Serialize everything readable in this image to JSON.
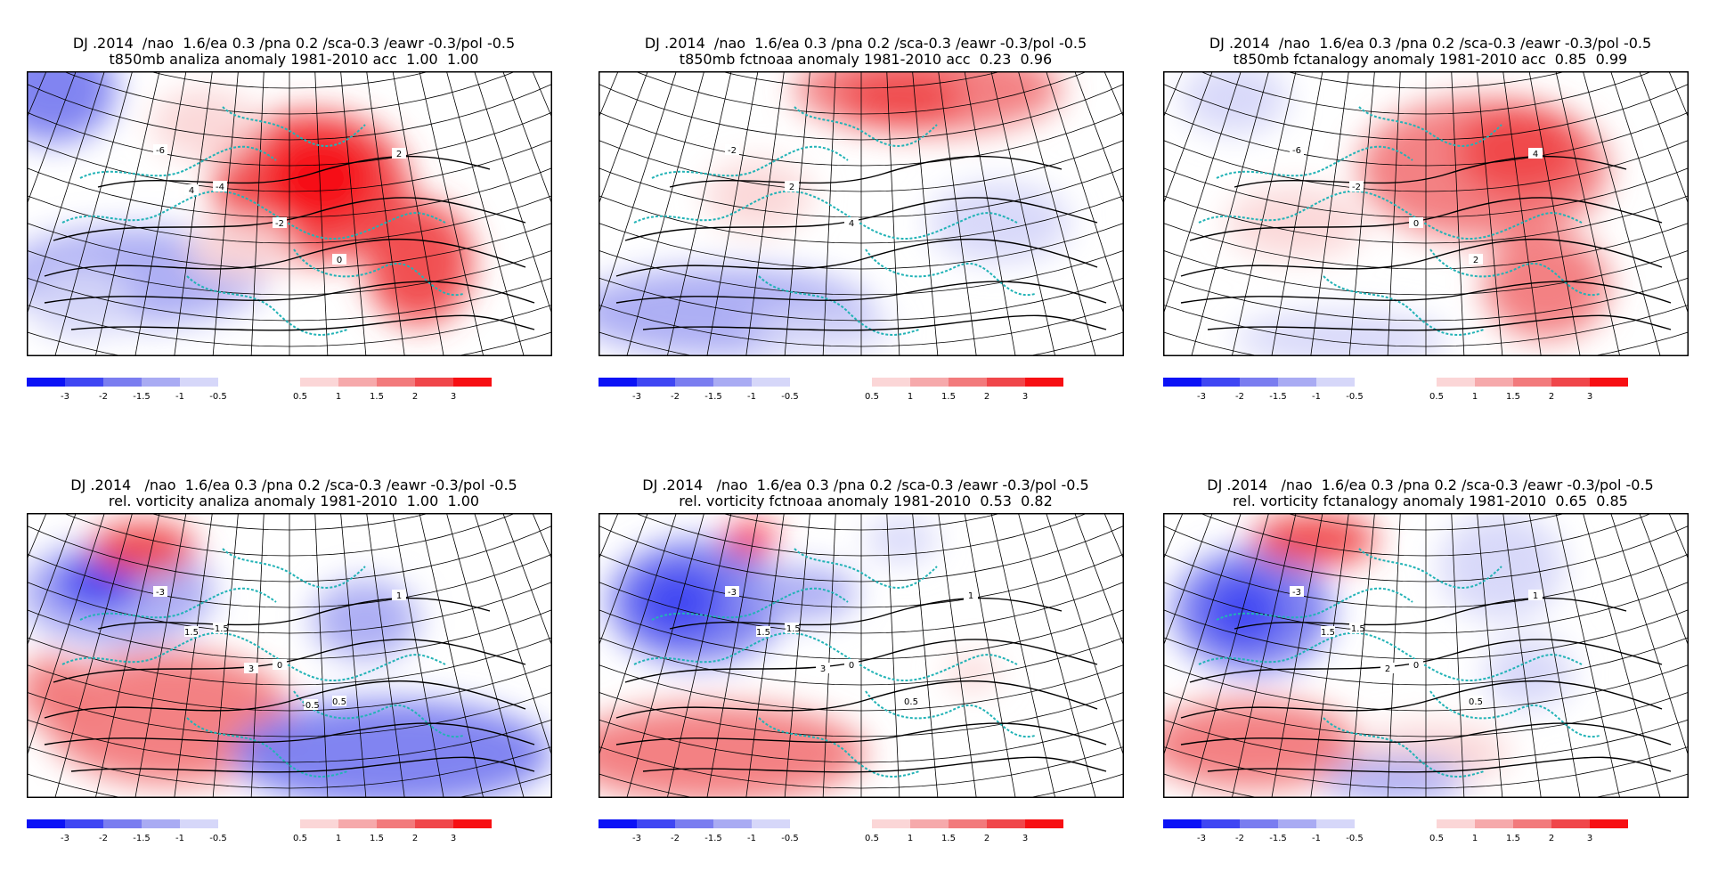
{
  "colors": {
    "neg": [
      "#0b12f6",
      "#3f46f3",
      "#7a7df0",
      "#a9abf3",
      "#d6d7f9"
    ],
    "pos": [
      "#fbd6d7",
      "#f6a9ab",
      "#f27a7c",
      "#f0464a",
      "#f70f13"
    ],
    "coast": "#22b3b6",
    "contour": "#000000"
  },
  "colorbar": {
    "neg_labels": [
      "-3",
      "-2",
      "-1.5",
      "-1",
      "-0.5"
    ],
    "pos_labels": [
      "0.5",
      "1",
      "1.5",
      "2",
      "3"
    ]
  },
  "panels": [
    {
      "line1": "DJ .2014  /nao  1.6/ea 0.3 /pna 0.2 /sca-0.3 /eawr -0.3/pol -0.5",
      "line2": "t850mb analiza anomaly 1981-2010 acc  1.00  1.00",
      "labels": [
        "-6",
        "-4",
        "-2",
        "0",
        "2",
        "4"
      ]
    },
    {
      "line1": "DJ .2014  /nao  1.6/ea 0.3 /pna 0.2 /sca-0.3 /eawr -0.3/pol -0.5",
      "line2": "t850mb fctnoaa anomaly 1981-2010 acc  0.23  0.96",
      "labels": [
        "-2",
        "2",
        "4"
      ]
    },
    {
      "line1": "DJ .2014  /nao  1.6/ea 0.3 /pna 0.2 /sca-0.3 /eawr -0.3/pol -0.5",
      "line2": "t850mb fctanalogy anomaly 1981-2010 acc  0.85  0.99",
      "labels": [
        "-6",
        "-2",
        "0",
        "2",
        "4"
      ]
    },
    {
      "line1": "DJ .2014   /nao  1.6/ea 0.3 /pna 0.2 /sca-0.3 /eawr -0.3/pol -0.5",
      "line2": "rel. vorticity analiza anomaly 1981-2010  1.00  1.00",
      "labels": [
        "-3",
        "-1.5",
        "0",
        "0.5",
        "1",
        "1.5",
        "3",
        "-0.5"
      ]
    },
    {
      "line1": "DJ .2014   /nao  1.6/ea 0.3 /pna 0.2 /sca-0.3 /eawr -0.3/pol -0.5",
      "line2": "rel. vorticity fctnoaa anomaly 1981-2010  0.53  0.82",
      "labels": [
        "-3",
        "-1.5",
        "0",
        "0.5",
        "1",
        "1.5",
        "3"
      ]
    },
    {
      "line1": "DJ .2014   /nao  1.6/ea 0.3 /pna 0.2 /sca-0.3 /eawr -0.3/pol -0.5",
      "line2": "rel. vorticity fctanalogy anomaly 1981-2010  0.65  0.85",
      "labels": [
        "-3",
        "-1.5",
        "0",
        "0.5",
        "1",
        "1.5",
        "2"
      ]
    }
  ],
  "chart_data": [
    {
      "type": "heatmap",
      "title": "t850mb analiza anomaly 1981-2010 acc 1.00 1.00",
      "legend_levels": [
        -3,
        -2,
        -1.5,
        -1,
        -0.5,
        0.5,
        1,
        1.5,
        2,
        3
      ]
    },
    {
      "type": "heatmap",
      "title": "t850mb fctnoaa anomaly 1981-2010 acc 0.23 0.96",
      "legend_levels": [
        -3,
        -2,
        -1.5,
        -1,
        -0.5,
        0.5,
        1,
        1.5,
        2,
        3
      ]
    },
    {
      "type": "heatmap",
      "title": "t850mb fctanalogy anomaly 1981-2010 acc 0.85 0.99",
      "legend_levels": [
        -3,
        -2,
        -1.5,
        -1,
        -0.5,
        0.5,
        1,
        1.5,
        2,
        3
      ]
    },
    {
      "type": "heatmap",
      "title": "rel. vorticity analiza anomaly 1981-2010 1.00 1.00",
      "legend_levels": [
        -3,
        -2,
        -1.5,
        -1,
        -0.5,
        0.5,
        1,
        1.5,
        2,
        3
      ]
    },
    {
      "type": "heatmap",
      "title": "rel. vorticity fctnoaa anomaly 1981-2010 0.53 0.82",
      "legend_levels": [
        -3,
        -2,
        -1.5,
        -1,
        -0.5,
        0.5,
        1,
        1.5,
        2,
        3
      ]
    },
    {
      "type": "heatmap",
      "title": "rel. vorticity fctanalogy anomaly 1981-2010 0.65 0.85",
      "legend_levels": [
        -3,
        -2,
        -1.5,
        -1,
        -0.5,
        0.5,
        1,
        1.5,
        2,
        3
      ]
    }
  ]
}
